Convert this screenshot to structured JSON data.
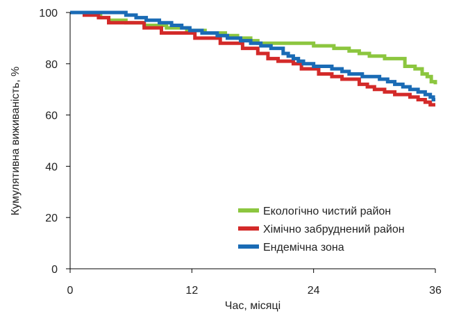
{
  "chart_data": {
    "type": "line",
    "step": true,
    "xlabel": "Час, місяці",
    "ylabel": "Кумулятивна виживаність, %",
    "xlim": [
      0,
      36
    ],
    "ylim": [
      0,
      100
    ],
    "xticks": [
      0,
      12,
      24,
      36
    ],
    "yticks": [
      0,
      20,
      40,
      60,
      80,
      100
    ],
    "grid": false,
    "legend_position": "bottom-right",
    "series": [
      {
        "name": "Екологічно чистий район",
        "color": "#8cc63f",
        "x": [
          0,
          3,
          3.8,
          5.5,
          7.3,
          9.5,
          11.5,
          13.3,
          15.3,
          16.5,
          17.8,
          18.5,
          24,
          26,
          27.5,
          28.5,
          29.5,
          31,
          33,
          34,
          34.7,
          35.2,
          35.6,
          36
        ],
        "y": [
          100,
          98,
          97,
          96,
          95,
          94,
          93,
          92,
          91,
          90,
          89,
          88,
          87,
          86,
          85,
          84,
          83,
          82,
          79,
          78,
          76,
          75,
          73,
          72
        ]
      },
      {
        "name": "Хімічно забруднений район",
        "color": "#d32a29",
        "x": [
          0,
          1.4,
          2.8,
          3.8,
          7.3,
          9,
          12.3,
          14.8,
          17,
          18.5,
          19.5,
          20.5,
          22,
          22.8,
          24.5,
          25.8,
          26.8,
          28.5,
          29.3,
          30,
          31,
          32,
          33.5,
          34.3,
          35,
          35.5,
          36
        ],
        "y": [
          100,
          99,
          98,
          96,
          94,
          92,
          90,
          88,
          86,
          84,
          82,
          81,
          80,
          78,
          76,
          75,
          74,
          72,
          71,
          70,
          69,
          68,
          67,
          66,
          65,
          64,
          64
        ]
      },
      {
        "name": "Ендемічна зона",
        "color": "#1a6bb5",
        "x": [
          0,
          5.5,
          6.5,
          7.5,
          8.8,
          10,
          11,
          11.8,
          13,
          14.5,
          15.5,
          16.8,
          17.8,
          18.8,
          19.8,
          21,
          21.5,
          22,
          22.5,
          23,
          24,
          25.8,
          26.8,
          27.5,
          28.8,
          30.5,
          31.3,
          32,
          32.8,
          33.5,
          34.3,
          35,
          35.5,
          35.8,
          36
        ],
        "y": [
          100,
          99,
          98,
          97,
          96,
          95,
          94,
          93,
          92,
          91,
          90,
          89,
          88,
          87,
          86,
          84,
          83,
          82,
          81,
          80,
          79,
          78,
          77,
          76,
          75,
          74,
          73,
          72,
          71,
          70,
          69,
          68,
          67,
          66,
          66
        ]
      }
    ]
  }
}
